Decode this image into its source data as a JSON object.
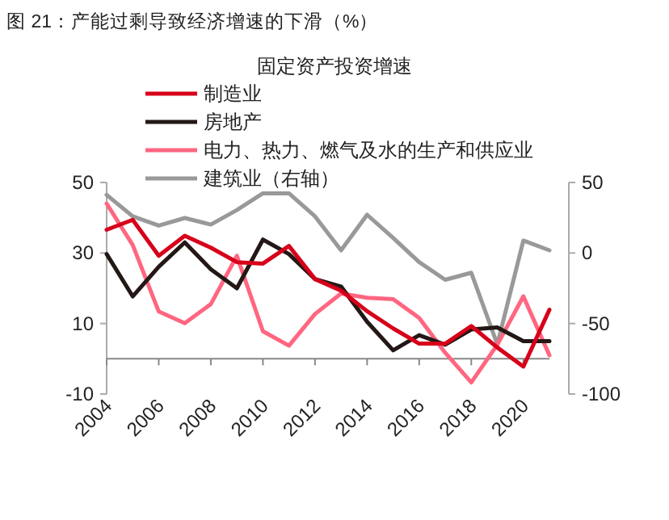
{
  "chart_data": {
    "type": "line",
    "title": "图 21：产能过剩导致经济增速的下滑（%）",
    "legend_title": "固定资产投资增速",
    "legend": "top",
    "x": [
      2004,
      2005,
      2006,
      2007,
      2008,
      2009,
      2010,
      2011,
      2012,
      2013,
      2014,
      2015,
      2016,
      2017,
      2018,
      2019,
      2020,
      2021
    ],
    "series": [
      {
        "name": "制造业",
        "color": "#d7001a",
        "values": [
          36.6,
          39.4,
          29.2,
          34.9,
          31.5,
          27.4,
          27.0,
          32.0,
          22.6,
          19.3,
          13.5,
          8.6,
          4.3,
          4.3,
          9.3,
          3.2,
          -2.2,
          13.9
        ]
      },
      {
        "name": "房地产",
        "color": "#231815",
        "values": [
          29.7,
          17.7,
          26.1,
          33.0,
          25.4,
          20.0,
          33.8,
          29.7,
          22.6,
          20.5,
          10.5,
          2.4,
          6.7,
          4.0,
          8.3,
          8.9,
          5.0,
          5.0
        ]
      },
      {
        "name": "电力、热力、燃气及水的生产和供应业",
        "color": "#ff6680",
        "values": [
          44.0,
          32.3,
          13.4,
          10.1,
          15.5,
          29.2,
          7.8,
          3.7,
          12.7,
          18.5,
          17.3,
          16.9,
          11.6,
          1.7,
          -6.7,
          4.0,
          17.7,
          1.0
        ]
      },
      {
        "name": "建筑业（右轴）",
        "color": "#999999",
        "axis": "y2",
        "values": [
          41.2,
          26.0,
          19.4,
          24.8,
          20.2,
          30.5,
          42.3,
          42.3,
          26.0,
          1.9,
          27.1,
          10.7,
          -6.5,
          -19.0,
          -14.0,
          -64.8,
          8.8,
          1.9
        ]
      }
    ],
    "xlim": [
      2004,
      2021
    ],
    "xticks": [
      2004,
      2006,
      2008,
      2010,
      2012,
      2014,
      2016,
      2018,
      2020
    ],
    "ylim": [
      -10,
      50
    ],
    "yticks": [
      50,
      30,
      10,
      -10
    ],
    "y2lim": [
      -100,
      50
    ],
    "y2ticks": [
      50,
      0,
      -50,
      -100
    ]
  }
}
